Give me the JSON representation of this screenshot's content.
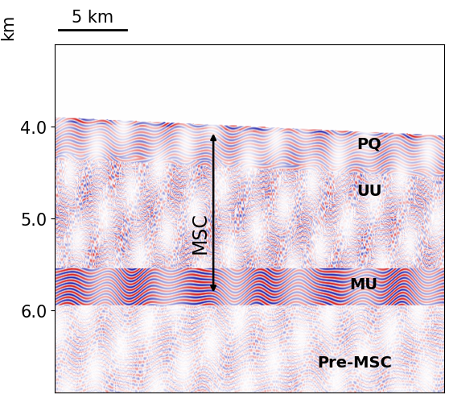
{
  "chart_data": {
    "type": "seismic_section",
    "ylabel": "km",
    "xlim": [
      0,
      29
    ],
    "ylim": [
      6.9,
      3.1
    ],
    "yticks": [
      {
        "value": 4.0,
        "label": "4.0"
      },
      {
        "value": 5.0,
        "label": "5.0"
      },
      {
        "value": 6.0,
        "label": "6.0"
      }
    ],
    "tick_labels": "y",
    "scale_bar": {
      "length": 5,
      "label": "5 km"
    },
    "seafloor": {
      "x": [
        0,
        29
      ],
      "depth": [
        3.9,
        4.1
      ]
    },
    "annotations": [
      {
        "text": "PQ",
        "x": 23.4,
        "depth": 4.18
      },
      {
        "text": "UU",
        "x": 23.4,
        "depth": 4.7
      },
      {
        "text": "MU",
        "x": 23.0,
        "depth": 5.72
      },
      {
        "text": "Pre-MSC",
        "x": 22.3,
        "depth": 6.57
      }
    ],
    "interval": {
      "text": "MSC",
      "x": 11.8,
      "top": 4.05,
      "bottom": 5.83,
      "label_x": 10.8,
      "label_depth": 5.15
    }
  }
}
